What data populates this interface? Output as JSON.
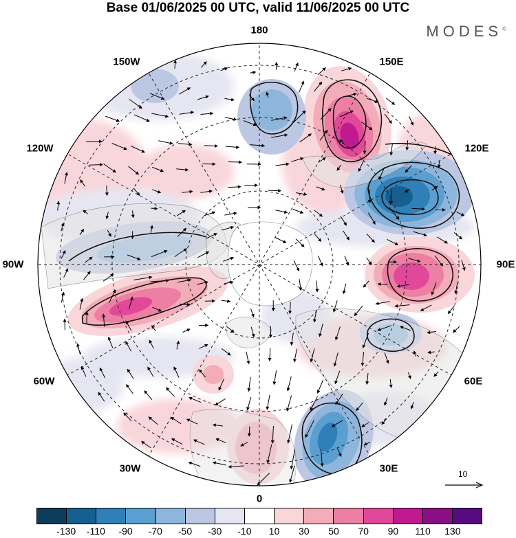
{
  "title": "Base 01/06/2025 00 UTC, valid 11/06/2025 00 UTC",
  "brand": "MODES",
  "brand_mark": "©",
  "longitude_labels": {
    "n180": "180",
    "w150": "150W",
    "e150": "150E",
    "w120": "120W",
    "e120": "120E",
    "w90": "90W",
    "e90": "90E",
    "w60": "60W",
    "e60": "60E",
    "w30": "30W",
    "e30": "30E",
    "s0": "0"
  },
  "reference_vector": {
    "label": "10",
    "icon": "arrow-right-icon"
  },
  "colorbar": {
    "colors": [
      "#0d3d5c",
      "#16608f",
      "#2f80b8",
      "#5a9fcf",
      "#8eb6dc",
      "#bcc8e3",
      "#e6e6f2",
      "#ffffff",
      "#f9d6da",
      "#f3adb9",
      "#ec7fa3",
      "#e2489a",
      "#c11a90",
      "#8a0f84",
      "#580b80"
    ],
    "tick_labels": [
      "-130",
      "-110",
      "-90",
      "-70",
      "-50",
      "-30",
      "-10",
      "10",
      "30",
      "50",
      "70",
      "90",
      "110",
      "130"
    ]
  }
}
